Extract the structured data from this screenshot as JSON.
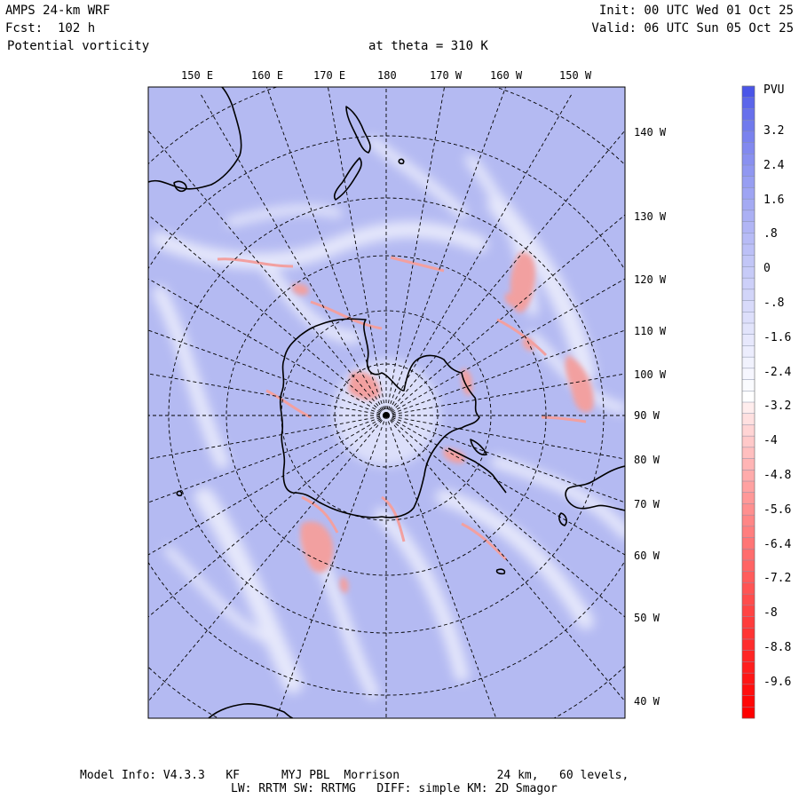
{
  "header": {
    "model": "AMPS 24-km WRF",
    "forecast": "Fcst:  102 h",
    "field": "Potential vorticity",
    "level": "at theta = 310 K",
    "init": "Init: 00 UTC Wed 01 Oct 25",
    "valid": "Valid: 06 UTC Sun 05 Oct 25"
  },
  "top_lon_labels": [
    "150 E",
    "160 E",
    "170 E",
    "180",
    "170 W",
    "160 W",
    "150 W"
  ],
  "right_lon_labels": [
    "140 W",
    "130 W",
    "120 W",
    "110 W",
    "100 W",
    "90 W",
    "80 W",
    "70 W",
    "60 W",
    "50 W",
    "40 W"
  ],
  "colorbar": {
    "unit": "PVU",
    "labels": [
      "3.2",
      "2.4",
      "1.6",
      ".8",
      "0",
      "-.8",
      "-1.6",
      "-2.4",
      "-3.2",
      "-4",
      "-4.8",
      "-5.6",
      "-6.4",
      "-7.2",
      "-8",
      "-8.8",
      "-9.6"
    ],
    "top_color": "#4a55e8",
    "mid_color": "#ffffff",
    "bottom_color": "#ff0000"
  },
  "footer": {
    "line1": "Model Info: V4.3.3   KF      MYJ PBL  Morrison              24 km,   60 levels,",
    "line2": "LW: RRTM SW: RRTMG   DIFF: simple KM: 2D Smagor"
  },
  "colors": {
    "background_field": "#b4baf2",
    "light_field": "#e3e6fb",
    "negative_patch": "#f2a0a0",
    "coastline": "#000000"
  }
}
